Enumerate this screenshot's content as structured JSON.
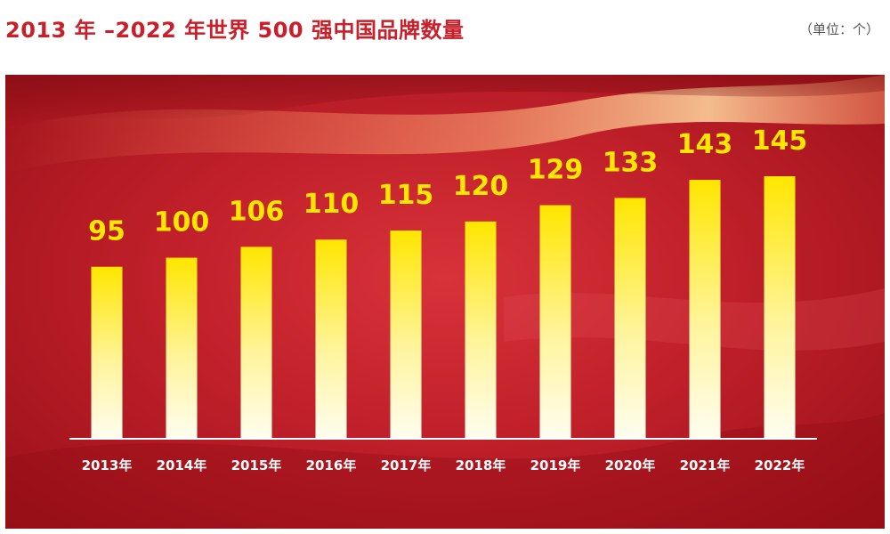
{
  "header": {
    "title": "2013 年 –2022 年世界 500 强中国品牌数量",
    "unit": "（单位：个）"
  },
  "colors": {
    "title": "#c8202a",
    "panel": "#c0202a",
    "bar_top": "#ffe600",
    "bar_bottom": "#fffdf0",
    "value_label": "#ffe600",
    "axis": "#ffffff"
  },
  "chart_data": {
    "type": "bar",
    "title": "2013 年 –2022 年世界 500 强中国品牌数量",
    "unit": "（单位：个）",
    "categories": [
      "2013年",
      "2014年",
      "2015年",
      "2016年",
      "2017年",
      "2018年",
      "2019年",
      "2020年",
      "2021年",
      "2022年"
    ],
    "values": [
      95,
      100,
      106,
      110,
      115,
      120,
      129,
      133,
      143,
      145
    ],
    "ylim": [
      0,
      150
    ],
    "grid": false,
    "legend": "none"
  }
}
